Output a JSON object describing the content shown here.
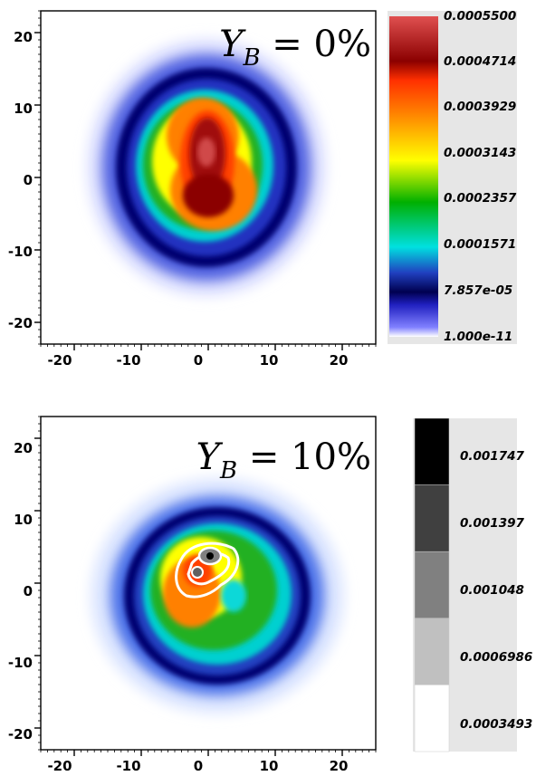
{
  "chart_data": [
    {
      "type": "heatmap",
      "title": "Y_B = 0%",
      "title_parts": {
        "symbol": "Y",
        "subscript": "B",
        "rest": " = 0%"
      },
      "xlim": [
        -25,
        25
      ],
      "ylim": [
        -23,
        23
      ],
      "x_ticks": [
        "-20",
        "-10",
        "0",
        "10",
        "20"
      ],
      "y_ticks": [
        "20",
        "10",
        "0",
        "-10",
        "-20"
      ],
      "colormap": [
        "#ffffff",
        "#8080ff",
        "#2020c0",
        "#000060",
        "#00e0e0",
        "#00b000",
        "#ffff00",
        "#ff8000",
        "#8b0000",
        "#e05050"
      ],
      "colorbar": {
        "labels": [
          "0.0005500",
          "0.0004714",
          "0.0003929",
          "0.0003143",
          "0.0002357",
          "0.0001571",
          "7.857e-05",
          "1.000e-11"
        ],
        "min": 1e-11,
        "max": 0.00055
      },
      "blobs": [
        {
          "x": 1.5,
          "y": 3.5,
          "value": 0.00055
        },
        {
          "x": 1.5,
          "y": -2.5,
          "value": 0.0005
        }
      ]
    },
    {
      "type": "heatmap",
      "title": "Y_B = 10%",
      "title_parts": {
        "symbol": "Y",
        "subscript": "B",
        "rest": " = 10%"
      },
      "xlim": [
        -25,
        25
      ],
      "ylim": [
        -23,
        23
      ],
      "x_ticks": [
        "-20",
        "-10",
        "0",
        "10",
        "20"
      ],
      "y_ticks": [
        "20",
        "10",
        "0",
        "-10",
        "-20"
      ],
      "colorbar": {
        "type": "discrete-grayscale",
        "labels": [
          "0.001747",
          "0.001397",
          "0.001048",
          "0.0006986",
          "0.0003493"
        ],
        "colors": [
          "#000000",
          "#404040",
          "#808080",
          "#c0c0c0",
          "#ffffff"
        ]
      },
      "blobs": [
        {
          "x": 0.5,
          "y": 2.5,
          "value": 0.00045
        },
        {
          "x": 5,
          "y": 0,
          "value": 0.00015
        }
      ]
    }
  ]
}
